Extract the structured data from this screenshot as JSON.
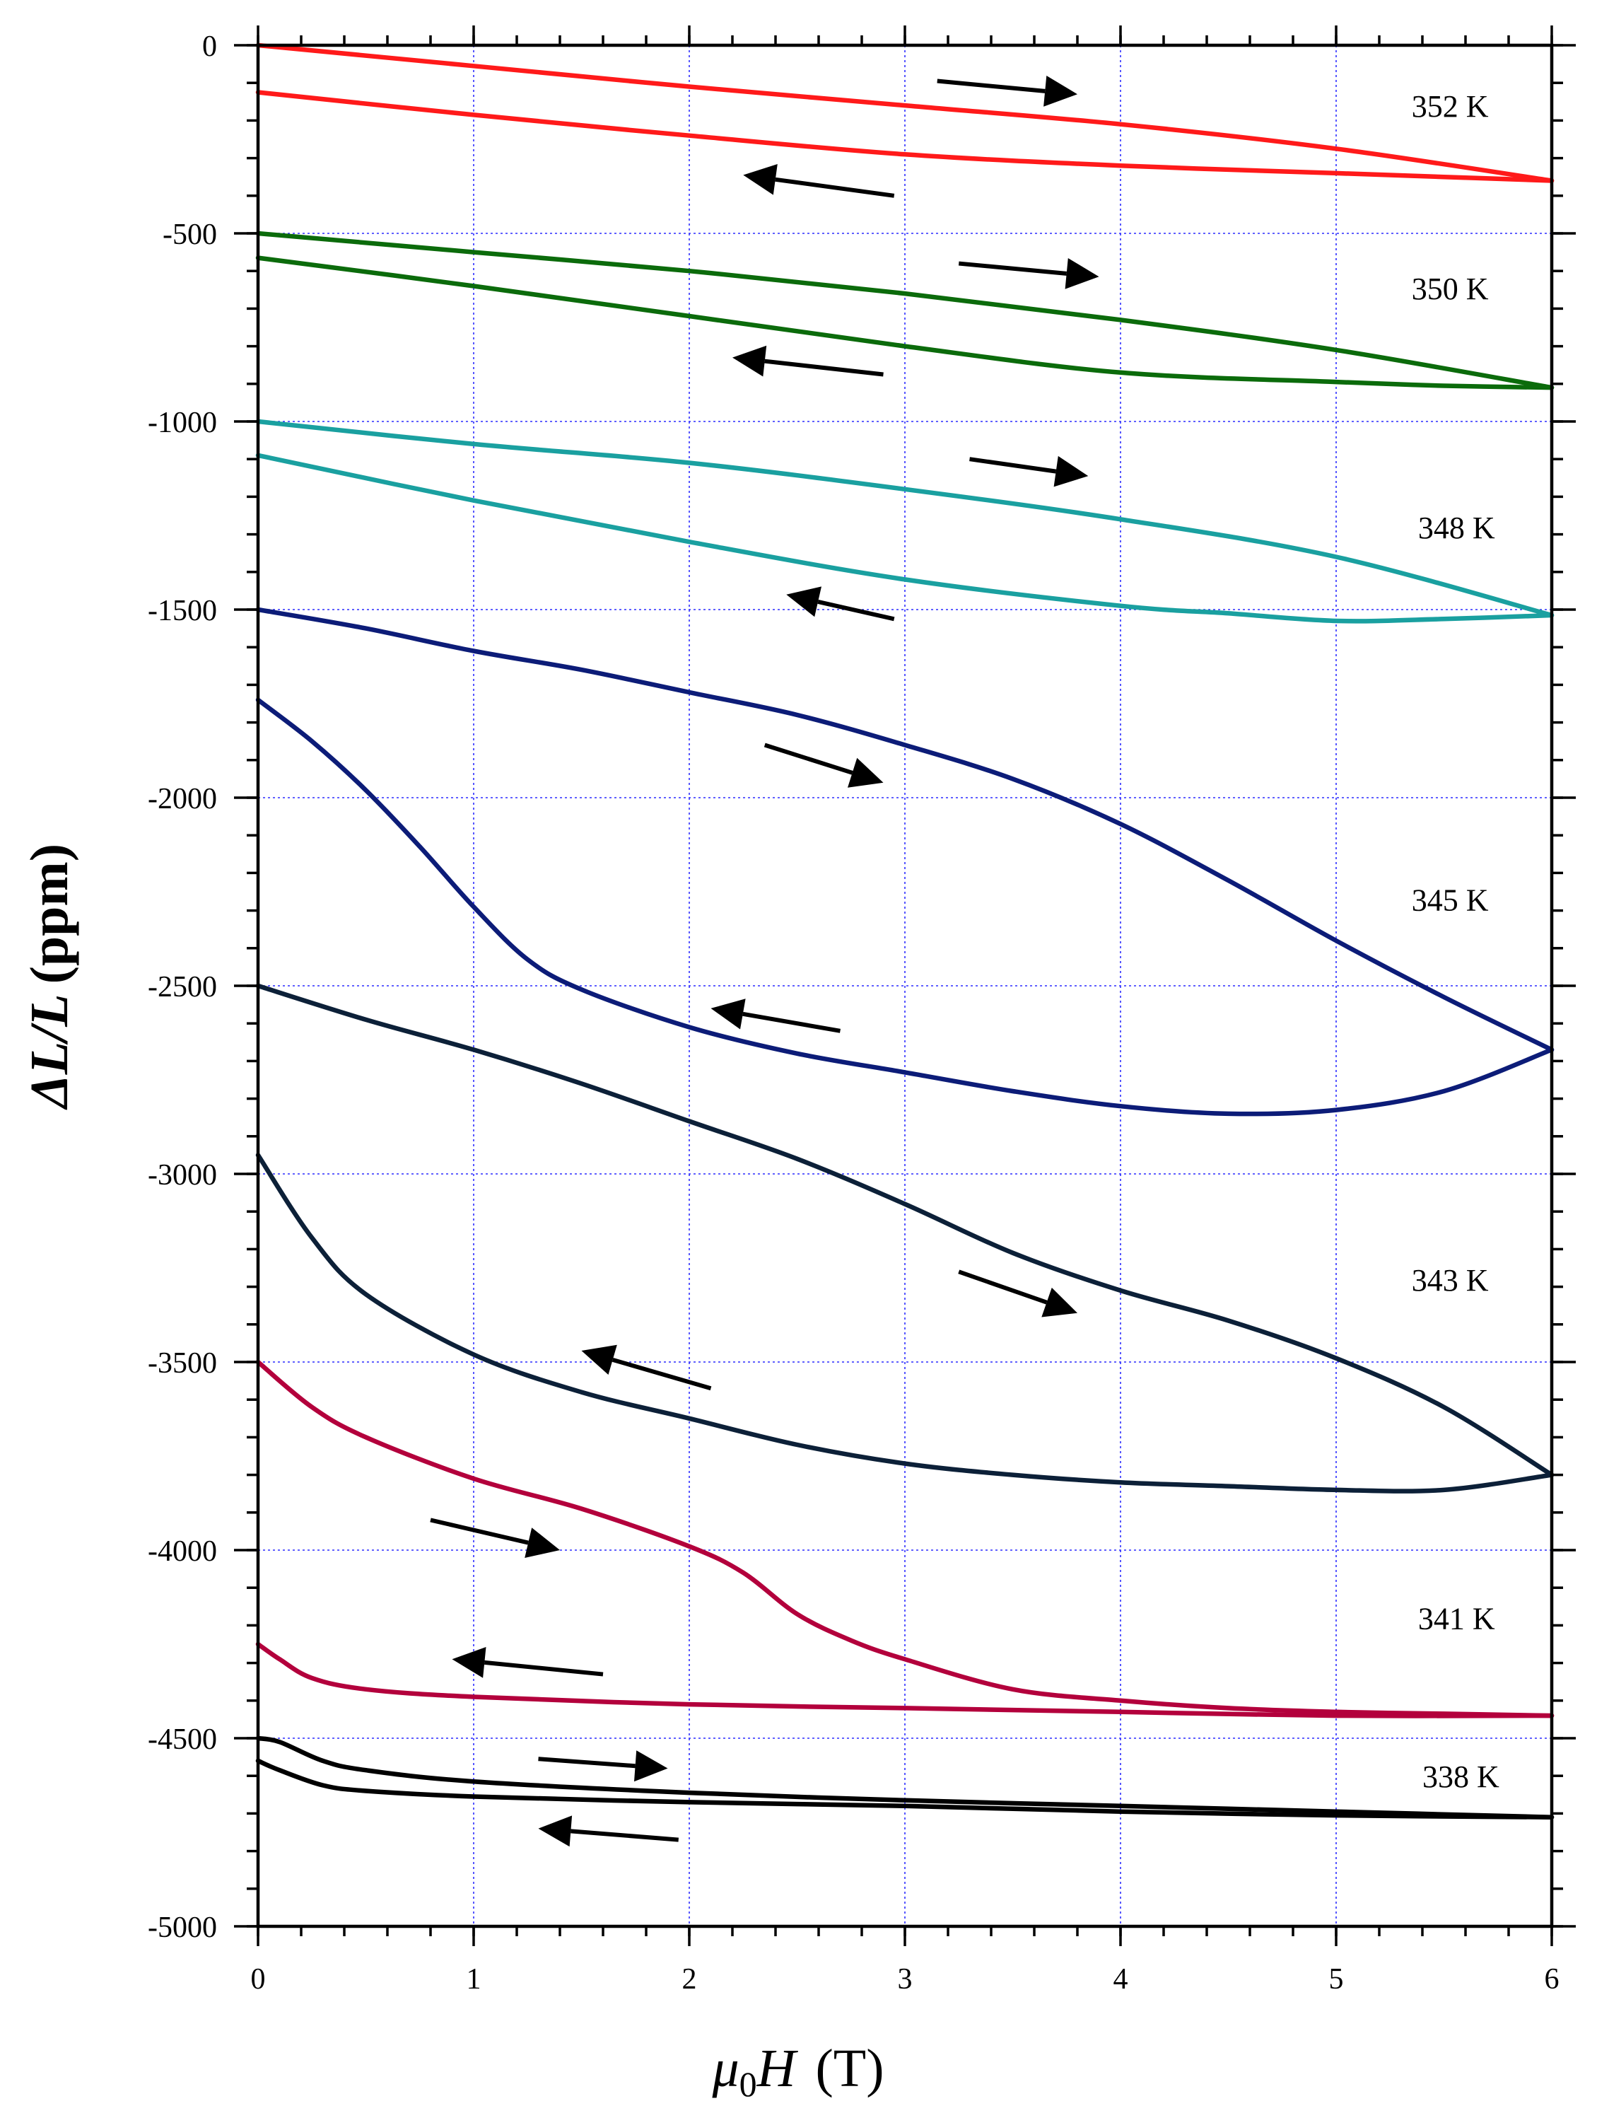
{
  "chart_data": {
    "type": "line",
    "title": "",
    "xlabel": {
      "symbol": "μ",
      "subscript": "0",
      "var": "H",
      "unit": "(T)"
    },
    "ylabel": {
      "delta": "Δ",
      "var": "L/L",
      "unit": "(ppm)"
    },
    "xlim": [
      0,
      6
    ],
    "ylim": [
      -5000,
      0
    ],
    "x_ticks": [
      0,
      1,
      2,
      3,
      4,
      5,
      6
    ],
    "y_ticks": [
      0,
      -500,
      -1000,
      -1500,
      -2000,
      -2500,
      -3000,
      -3500,
      -4000,
      -4500,
      -5000
    ],
    "grid": true,
    "series": [
      {
        "name": "352 K",
        "label": "352 K",
        "color": "#ff1a1a",
        "label_pos": [
          5.35,
          -190
        ],
        "up": {
          "x": [
            0,
            1,
            2,
            3,
            4,
            5,
            6
          ],
          "y": [
            0,
            -55,
            -110,
            -160,
            -210,
            -275,
            -360
          ]
        },
        "down": {
          "x": [
            6,
            5.5,
            5,
            4,
            3,
            2,
            1,
            0
          ],
          "y": [
            -360,
            -350,
            -340,
            -320,
            -290,
            -240,
            -185,
            -125
          ]
        },
        "arrows": [
          {
            "from": [
              3.15,
              -95
            ],
            "to": [
              3.8,
              -130
            ]
          },
          {
            "from": [
              2.95,
              -400
            ],
            "to": [
              2.25,
              -345
            ]
          }
        ]
      },
      {
        "name": "350 K",
        "label": "350 K",
        "color": "#0b6b0b",
        "label_pos": [
          5.35,
          -675
        ],
        "up": {
          "x": [
            0,
            1,
            2,
            3,
            4,
            5,
            6
          ],
          "y": [
            -500,
            -550,
            -600,
            -660,
            -730,
            -810,
            -910
          ]
        },
        "down": {
          "x": [
            6,
            5.5,
            5,
            4,
            3,
            2,
            1,
            0
          ],
          "y": [
            -910,
            -905,
            -895,
            -870,
            -800,
            -720,
            -640,
            -565
          ]
        },
        "arrows": [
          {
            "from": [
              3.25,
              -580
            ],
            "to": [
              3.9,
              -615
            ]
          },
          {
            "from": [
              2.9,
              -875
            ],
            "to": [
              2.2,
              -830
            ]
          }
        ]
      },
      {
        "name": "348 K",
        "label": "348 K",
        "color": "#1aa0a0",
        "label_pos": [
          5.38,
          -1310
        ],
        "up": {
          "x": [
            0,
            1,
            2,
            3,
            4,
            5,
            6
          ],
          "y": [
            -1000,
            -1060,
            -1110,
            -1180,
            -1260,
            -1360,
            -1515
          ]
        },
        "down": {
          "x": [
            6,
            5.5,
            5,
            4.5,
            4,
            3,
            2,
            1,
            0
          ],
          "y": [
            -1515,
            -1525,
            -1530,
            -1510,
            -1490,
            -1420,
            -1320,
            -1210,
            -1090
          ]
        },
        "arrows": [
          {
            "from": [
              3.3,
              -1100
            ],
            "to": [
              3.85,
              -1145
            ]
          },
          {
            "from": [
              2.95,
              -1525
            ],
            "to": [
              2.45,
              -1460
            ]
          }
        ]
      },
      {
        "name": "345 K",
        "label": "345 K",
        "color": "#0c1c78",
        "label_pos": [
          5.35,
          -2300
        ],
        "up": {
          "x": [
            0,
            0.5,
            1,
            1.5,
            2,
            2.5,
            3,
            3.5,
            4,
            4.5,
            5,
            5.5,
            6
          ],
          "y": [
            -1500,
            -1550,
            -1610,
            -1660,
            -1720,
            -1780,
            -1860,
            -1950,
            -2070,
            -2220,
            -2380,
            -2530,
            -2670
          ]
        },
        "down": {
          "x": [
            6,
            5.5,
            5,
            4.5,
            4,
            3.5,
            3,
            2.5,
            2,
            1.5,
            1.25,
            1,
            0.75,
            0.5,
            0.25,
            0
          ],
          "y": [
            -2670,
            -2780,
            -2830,
            -2840,
            -2820,
            -2780,
            -2730,
            -2680,
            -2610,
            -2510,
            -2430,
            -2290,
            -2130,
            -1980,
            -1850,
            -1740
          ]
        },
        "arrows": [
          {
            "from": [
              2.35,
              -1860
            ],
            "to": [
              2.9,
              -1960
            ]
          },
          {
            "from": [
              2.7,
              -2620
            ],
            "to": [
              2.1,
              -2560
            ]
          }
        ]
      },
      {
        "name": "343 K",
        "label": "343 K",
        "color": "#0c2038",
        "label_pos": [
          5.35,
          -3310
        ],
        "up": {
          "x": [
            0,
            0.5,
            1,
            1.5,
            2,
            2.5,
            3,
            3.5,
            4,
            4.5,
            5,
            5.5,
            6
          ],
          "y": [
            -2500,
            -2590,
            -2670,
            -2760,
            -2860,
            -2960,
            -3080,
            -3210,
            -3310,
            -3390,
            -3490,
            -3620,
            -3800
          ]
        },
        "down": {
          "x": [
            6,
            5.5,
            5,
            4.5,
            4,
            3.5,
            3,
            2.5,
            2,
            1.5,
            1,
            0.5,
            0.25,
            0
          ],
          "y": [
            -3800,
            -3840,
            -3840,
            -3830,
            -3820,
            -3800,
            -3770,
            -3720,
            -3650,
            -3580,
            -3480,
            -3320,
            -3170,
            -2950
          ]
        },
        "arrows": [
          {
            "from": [
              3.25,
              -3260
            ],
            "to": [
              3.8,
              -3370
            ]
          },
          {
            "from": [
              2.1,
              -3570
            ],
            "to": [
              1.5,
              -3470
            ]
          }
        ]
      },
      {
        "name": "341 K",
        "label": "341 K",
        "color": "#b3003c",
        "label_pos": [
          5.38,
          -4210
        ],
        "up": {
          "x": [
            0,
            0.25,
            0.5,
            1,
            1.5,
            2,
            2.25,
            2.5,
            2.75,
            3,
            3.5,
            4,
            4.5,
            5,
            5.5,
            6
          ],
          "y": [
            -3500,
            -3620,
            -3700,
            -3810,
            -3890,
            -3990,
            -4060,
            -4170,
            -4240,
            -4290,
            -4370,
            -4400,
            -4420,
            -4430,
            -4435,
            -4440
          ]
        },
        "down": {
          "x": [
            6,
            5,
            4,
            3,
            2,
            1,
            0.5,
            0.25,
            0.1,
            0
          ],
          "y": [
            -4440,
            -4440,
            -4430,
            -4420,
            -4410,
            -4390,
            -4370,
            -4340,
            -4290,
            -4250
          ]
        },
        "arrows": [
          {
            "from": [
              0.8,
              -3920
            ],
            "to": [
              1.4,
              -4000
            ]
          },
          {
            "from": [
              1.6,
              -4330
            ],
            "to": [
              0.9,
              -4290
            ]
          }
        ]
      },
      {
        "name": "338 K",
        "label": "338 K",
        "color": "#000000",
        "label_pos": [
          5.4,
          -4630
        ],
        "up": {
          "x": [
            0,
            0.1,
            0.3,
            0.5,
            1,
            2,
            3,
            4,
            5,
            6
          ],
          "y": [
            -4500,
            -4510,
            -4560,
            -4585,
            -4615,
            -4645,
            -4665,
            -4680,
            -4695,
            -4710
          ]
        },
        "down": {
          "x": [
            6,
            5,
            4,
            3,
            2,
            1,
            0.5,
            0.3,
            0.1,
            0
          ],
          "y": [
            -4710,
            -4705,
            -4695,
            -4680,
            -4670,
            -4655,
            -4640,
            -4625,
            -4585,
            -4560
          ]
        },
        "arrows": [
          {
            "from": [
              1.3,
              -4555
            ],
            "to": [
              1.9,
              -4580
            ]
          },
          {
            "from": [
              1.95,
              -4770
            ],
            "to": [
              1.3,
              -4740
            ]
          }
        ]
      }
    ]
  }
}
